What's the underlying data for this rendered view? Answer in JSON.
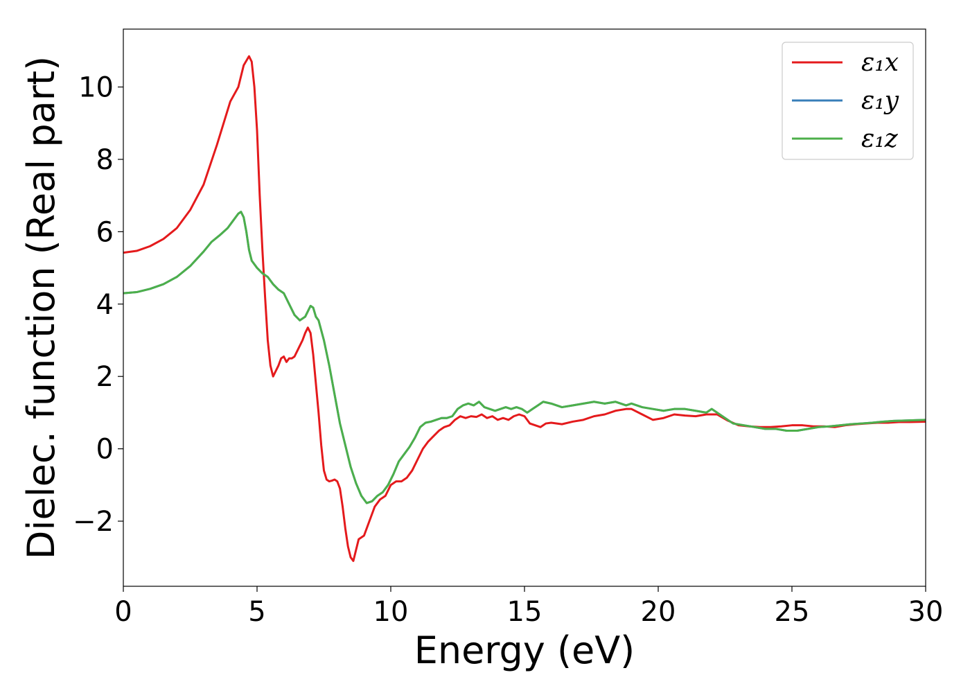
{
  "chart_data": {
    "type": "line",
    "xlabel": "Energy (eV)",
    "ylabel": "Dielec. function (Real part)",
    "xlim": [
      0,
      30
    ],
    "ylim": [
      -3.8,
      11.6
    ],
    "x_ticks": [
      0,
      5,
      10,
      15,
      20,
      25,
      30
    ],
    "y_ticks": [
      -2,
      0,
      2,
      4,
      6,
      8,
      10
    ],
    "x_tick_labels": [
      "0",
      "5",
      "10",
      "15",
      "20",
      "25",
      "30"
    ],
    "y_tick_labels": [
      "−2",
      "0",
      "2",
      "4",
      "6",
      "8",
      "10"
    ],
    "legend_position": "top-right",
    "grid": false,
    "series": [
      {
        "name": "ε₁x",
        "color": "#e41a1c",
        "x": [
          0,
          0.5,
          1.0,
          1.5,
          2.0,
          2.5,
          3.0,
          3.5,
          4.0,
          4.3,
          4.5,
          4.7,
          4.8,
          4.9,
          5.0,
          5.1,
          5.2,
          5.3,
          5.4,
          5.5,
          5.6,
          5.7,
          5.8,
          5.9,
          6.0,
          6.1,
          6.2,
          6.3,
          6.4,
          6.5,
          6.6,
          6.7,
          6.8,
          6.9,
          7.0,
          7.1,
          7.2,
          7.3,
          7.4,
          7.5,
          7.6,
          7.7,
          7.8,
          7.9,
          8.0,
          8.1,
          8.2,
          8.3,
          8.4,
          8.5,
          8.6,
          8.7,
          8.8,
          8.9,
          9.0,
          9.2,
          9.4,
          9.6,
          9.8,
          10.0,
          10.2,
          10.4,
          10.6,
          10.8,
          11.0,
          11.2,
          11.4,
          11.6,
          11.8,
          12.0,
          12.2,
          12.4,
          12.6,
          12.8,
          13.0,
          13.2,
          13.4,
          13.6,
          13.8,
          14.0,
          14.2,
          14.4,
          14.6,
          14.8,
          15.0,
          15.2,
          15.4,
          15.6,
          15.8,
          16.0,
          16.4,
          16.8,
          17.2,
          17.6,
          18.0,
          18.4,
          18.8,
          19.0,
          19.4,
          19.8,
          20.2,
          20.6,
          21.0,
          21.4,
          21.8,
          22.2,
          22.6,
          23.0,
          23.4,
          23.8,
          24.2,
          24.6,
          25.0,
          25.4,
          25.8,
          26.2,
          26.6,
          27.0,
          27.4,
          27.8,
          28.2,
          28.6,
          29.0,
          29.4,
          30.0
        ],
        "y": [
          5.42,
          5.47,
          5.6,
          5.8,
          6.1,
          6.6,
          7.3,
          8.4,
          9.6,
          10.0,
          10.6,
          10.85,
          10.7,
          10.0,
          8.8,
          7.0,
          5.5,
          4.2,
          3.0,
          2.3,
          2.0,
          2.15,
          2.3,
          2.5,
          2.55,
          2.4,
          2.5,
          2.5,
          2.55,
          2.7,
          2.85,
          3.0,
          3.2,
          3.35,
          3.2,
          2.6,
          1.8,
          1.0,
          0.1,
          -0.6,
          -0.85,
          -0.9,
          -0.88,
          -0.85,
          -0.9,
          -1.1,
          -1.6,
          -2.2,
          -2.7,
          -3.0,
          -3.1,
          -2.8,
          -2.5,
          -2.45,
          -2.4,
          -2.0,
          -1.6,
          -1.4,
          -1.3,
          -1.0,
          -0.9,
          -0.9,
          -0.8,
          -0.6,
          -0.3,
          0.0,
          0.2,
          0.35,
          0.5,
          0.6,
          0.65,
          0.8,
          0.9,
          0.85,
          0.9,
          0.88,
          0.95,
          0.85,
          0.9,
          0.8,
          0.85,
          0.8,
          0.9,
          0.95,
          0.9,
          0.7,
          0.65,
          0.6,
          0.7,
          0.72,
          0.68,
          0.75,
          0.8,
          0.9,
          0.95,
          1.05,
          1.1,
          1.1,
          0.95,
          0.8,
          0.85,
          0.95,
          0.92,
          0.9,
          0.95,
          0.95,
          0.78,
          0.65,
          0.62,
          0.6,
          0.6,
          0.62,
          0.65,
          0.65,
          0.62,
          0.62,
          0.6,
          0.65,
          0.68,
          0.7,
          0.72,
          0.72,
          0.74,
          0.74,
          0.75
        ]
      },
      {
        "name": "ε₁y",
        "color": "#377eb8",
        "x": [
          0,
          0.5,
          1.0,
          1.5,
          2.0,
          2.5,
          3.0,
          3.3,
          3.6,
          3.9,
          4.1,
          4.3,
          4.4,
          4.5,
          4.6,
          4.7,
          4.8,
          5.0,
          5.2,
          5.4,
          5.6,
          5.8,
          6.0,
          6.2,
          6.4,
          6.6,
          6.8,
          7.0,
          7.1,
          7.2,
          7.3,
          7.5,
          7.7,
          7.9,
          8.1,
          8.3,
          8.5,
          8.7,
          8.9,
          9.1,
          9.3,
          9.5,
          9.7,
          9.9,
          10.1,
          10.3,
          10.5,
          10.7,
          10.9,
          11.1,
          11.3,
          11.5,
          11.7,
          11.9,
          12.1,
          12.3,
          12.5,
          12.7,
          12.9,
          13.1,
          13.3,
          13.5,
          13.7,
          13.9,
          14.1,
          14.3,
          14.5,
          14.7,
          14.9,
          15.1,
          15.3,
          15.5,
          15.7,
          16.0,
          16.4,
          16.8,
          17.2,
          17.6,
          18.0,
          18.4,
          18.8,
          19.0,
          19.4,
          19.8,
          20.2,
          20.6,
          21.0,
          21.4,
          21.8,
          22.0,
          22.4,
          22.8,
          23.2,
          23.6,
          24.0,
          24.4,
          24.8,
          25.2,
          25.6,
          26.0,
          26.4,
          26.8,
          27.2,
          27.6,
          28.0,
          28.4,
          28.8,
          29.2,
          29.6,
          30.0
        ],
        "y": [
          4.3,
          4.33,
          4.42,
          4.55,
          4.75,
          5.05,
          5.45,
          5.72,
          5.9,
          6.1,
          6.3,
          6.5,
          6.55,
          6.4,
          6.0,
          5.5,
          5.2,
          5.0,
          4.85,
          4.75,
          4.55,
          4.4,
          4.3,
          4.0,
          3.7,
          3.55,
          3.65,
          3.95,
          3.9,
          3.65,
          3.55,
          3.0,
          2.3,
          1.5,
          0.7,
          0.1,
          -0.5,
          -0.95,
          -1.3,
          -1.5,
          -1.45,
          -1.3,
          -1.2,
          -1.0,
          -0.7,
          -0.35,
          -0.15,
          0.05,
          0.3,
          0.6,
          0.72,
          0.75,
          0.8,
          0.85,
          0.85,
          0.9,
          1.1,
          1.2,
          1.25,
          1.2,
          1.3,
          1.15,
          1.1,
          1.05,
          1.1,
          1.15,
          1.1,
          1.15,
          1.1,
          1.0,
          1.1,
          1.2,
          1.3,
          1.25,
          1.15,
          1.2,
          1.25,
          1.3,
          1.25,
          1.3,
          1.2,
          1.25,
          1.15,
          1.1,
          1.05,
          1.1,
          1.1,
          1.05,
          1.0,
          1.1,
          0.9,
          0.7,
          0.65,
          0.6,
          0.55,
          0.55,
          0.5,
          0.5,
          0.55,
          0.6,
          0.62,
          0.65,
          0.68,
          0.7,
          0.72,
          0.75,
          0.77,
          0.78,
          0.79,
          0.8
        ]
      },
      {
        "name": "ε₁z",
        "color": "#4daf4a",
        "x": [
          0,
          0.5,
          1.0,
          1.5,
          2.0,
          2.5,
          3.0,
          3.3,
          3.6,
          3.9,
          4.1,
          4.3,
          4.4,
          4.5,
          4.6,
          4.7,
          4.8,
          5.0,
          5.2,
          5.4,
          5.6,
          5.8,
          6.0,
          6.2,
          6.4,
          6.6,
          6.8,
          7.0,
          7.1,
          7.2,
          7.3,
          7.5,
          7.7,
          7.9,
          8.1,
          8.3,
          8.5,
          8.7,
          8.9,
          9.1,
          9.3,
          9.5,
          9.7,
          9.9,
          10.1,
          10.3,
          10.5,
          10.7,
          10.9,
          11.1,
          11.3,
          11.5,
          11.7,
          11.9,
          12.1,
          12.3,
          12.5,
          12.7,
          12.9,
          13.1,
          13.3,
          13.5,
          13.7,
          13.9,
          14.1,
          14.3,
          14.5,
          14.7,
          14.9,
          15.1,
          15.3,
          15.5,
          15.7,
          16.0,
          16.4,
          16.8,
          17.2,
          17.6,
          18.0,
          18.4,
          18.8,
          19.0,
          19.4,
          19.8,
          20.2,
          20.6,
          21.0,
          21.4,
          21.8,
          22.0,
          22.4,
          22.8,
          23.2,
          23.6,
          24.0,
          24.4,
          24.8,
          25.2,
          25.6,
          26.0,
          26.4,
          26.8,
          27.2,
          27.6,
          28.0,
          28.4,
          28.8,
          29.2,
          29.6,
          30.0
        ],
        "y": [
          4.3,
          4.33,
          4.42,
          4.55,
          4.75,
          5.05,
          5.45,
          5.72,
          5.9,
          6.1,
          6.3,
          6.5,
          6.55,
          6.4,
          6.0,
          5.5,
          5.2,
          5.0,
          4.85,
          4.75,
          4.55,
          4.4,
          4.3,
          4.0,
          3.7,
          3.55,
          3.65,
          3.95,
          3.9,
          3.65,
          3.55,
          3.0,
          2.3,
          1.5,
          0.7,
          0.1,
          -0.5,
          -0.95,
          -1.3,
          -1.5,
          -1.45,
          -1.3,
          -1.2,
          -1.0,
          -0.7,
          -0.35,
          -0.15,
          0.05,
          0.3,
          0.6,
          0.72,
          0.75,
          0.8,
          0.85,
          0.85,
          0.9,
          1.1,
          1.2,
          1.25,
          1.2,
          1.3,
          1.15,
          1.1,
          1.05,
          1.1,
          1.15,
          1.1,
          1.15,
          1.1,
          1.0,
          1.1,
          1.2,
          1.3,
          1.25,
          1.15,
          1.2,
          1.25,
          1.3,
          1.25,
          1.3,
          1.2,
          1.25,
          1.15,
          1.1,
          1.05,
          1.1,
          1.1,
          1.05,
          1.0,
          1.1,
          0.9,
          0.7,
          0.65,
          0.6,
          0.55,
          0.55,
          0.5,
          0.5,
          0.55,
          0.6,
          0.62,
          0.65,
          0.68,
          0.7,
          0.72,
          0.75,
          0.77,
          0.78,
          0.79,
          0.8
        ]
      }
    ]
  }
}
